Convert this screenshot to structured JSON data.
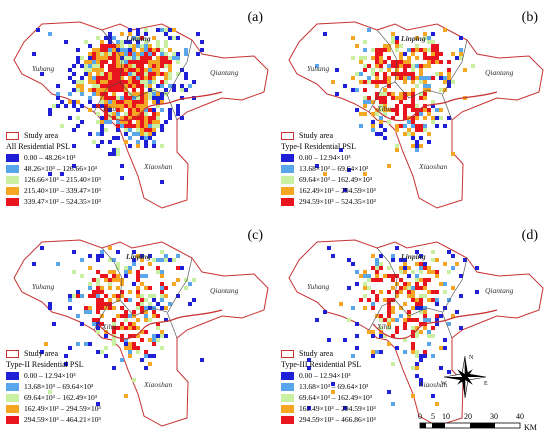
{
  "panels": [
    {
      "label": "(a)",
      "places": {
        "linping": "Linping",
        "yuhang": "Yuhang",
        "qiantang": "Qiantang",
        "xihu": "Xihu",
        "xiaoshan": "Xiaoshan"
      },
      "legend": {
        "study_area": "Study area",
        "title": "All Residential PSL",
        "classes": [
          {
            "label": "0.00 – 48.26×10³",
            "color": "#1f1fd6"
          },
          {
            "label": "48.26×10³ – 126.66×10³",
            "color": "#59a6ea"
          },
          {
            "label": "126.66×10³ – 215.40×10³",
            "color": "#c8f0a0"
          },
          {
            "label": "215.40×10³ – 339.47×10³",
            "color": "#f5a623"
          },
          {
            "label": "339.47×10³ – 524.35×10³",
            "color": "#e8141e"
          }
        ]
      }
    },
    {
      "label": "(b)",
      "places": {
        "linping": "Linping",
        "yuhang": "Yuhang",
        "qiantang": "Qiantang",
        "xihu": "Xihu",
        "xiaoshan": "Xiaoshan"
      },
      "legend": {
        "study_area": "Study area",
        "title": "Type-I Residential PSL",
        "classes": [
          {
            "label": "0.00 – 12.94×10³",
            "color": "#1f1fd6"
          },
          {
            "label": "13.68×10³ – 69.64×10³",
            "color": "#59a6ea"
          },
          {
            "label": "69.64×10³ – 162.49×10³",
            "color": "#c8f0a0"
          },
          {
            "label": "162.49×10³ – 294.59×10³",
            "color": "#f5a623"
          },
          {
            "label": "294.59×10³ – 524.35×10³",
            "color": "#e8141e"
          }
        ]
      }
    },
    {
      "label": "(c)",
      "places": {
        "linping": "Linping",
        "yuhang": "Yuhang",
        "qiantang": "Qiantang",
        "xihu": "Xihu",
        "xiaoshan": "Xiaoshan"
      },
      "legend": {
        "study_area": "Study area",
        "title": "Type-II Residential PSL",
        "classes": [
          {
            "label": "0.00 – 12.94×10³",
            "color": "#1f1fd6"
          },
          {
            "label": "13.68×10³ – 69.64×10³",
            "color": "#59a6ea"
          },
          {
            "label": "69.64×10³ – 162.49×10³",
            "color": "#c8f0a0"
          },
          {
            "label": "162.49×10³ – 294.59×10³",
            "color": "#f5a623"
          },
          {
            "label": "294.59×10³ – 464.21×10³",
            "color": "#e8141e"
          }
        ]
      }
    },
    {
      "label": "(d)",
      "places": {
        "linping": "Linping",
        "yuhang": "Yuhang",
        "qiantang": "Qiantang",
        "xihu": "Xihu",
        "xiaoshan": "Xiaoshan"
      },
      "legend": {
        "study_area": "Study area",
        "title": "Type-III Residential PSL",
        "classes": [
          {
            "label": "0.00 – 12.94×10³",
            "color": "#1f1fd6"
          },
          {
            "label": "13.68×10³ – 69.64×10³",
            "color": "#59a6ea"
          },
          {
            "label": "69.64×10³ – 162.49×10³",
            "color": "#c8f0a0"
          },
          {
            "label": "162.49×10³ – 294.59×10³",
            "color": "#f5a623"
          },
          {
            "label": "294.59×10³ – 466.86×10³",
            "color": "#e8141e"
          }
        ]
      }
    }
  ],
  "compass": {
    "n": "N",
    "s": "S",
    "e": "E",
    "w": "W"
  },
  "scalebar": {
    "ticks": [
      "0",
      "5",
      "10",
      "20",
      "30",
      "40"
    ],
    "unit": "KM"
  },
  "colors": {
    "boundary": "#c83232",
    "inner_boundary": "#444444"
  }
}
